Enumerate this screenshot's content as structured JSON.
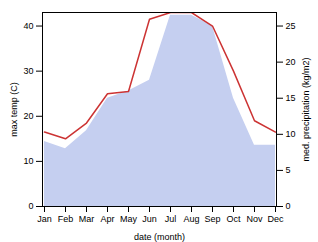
{
  "chart_data": {
    "type": "line",
    "xlabel": "date (month)",
    "ylabel": "max temp (C)",
    "y2label": "med. precipitation (kg/m2)",
    "categories": [
      "Jan",
      "Feb",
      "Mar",
      "Apr",
      "May",
      "Jun",
      "Jul",
      "Aug",
      "Sep",
      "Oct",
      "Nov",
      "Dec"
    ],
    "series": [
      {
        "type": "area",
        "axis": "y2",
        "color": "#c5cff0",
        "values": [
          9.0,
          8.0,
          10.5,
          15.0,
          16.0,
          17.5,
          26.5,
          26.5,
          25.0,
          15.0,
          8.5,
          8.5
        ]
      },
      {
        "type": "line",
        "color": "#cc3333",
        "values": [
          16.5,
          15.0,
          18.5,
          25.0,
          25.5,
          41.5,
          43.0,
          43.0,
          40.0,
          30.0,
          19.0,
          16.5
        ]
      }
    ],
    "ylim": [
      0,
      43
    ],
    "yticks": [
      0,
      10,
      20,
      30,
      40
    ],
    "y2lim": [
      0,
      26.875
    ],
    "y2ticks": [
      0,
      5,
      10,
      15,
      20,
      25
    ],
    "grid": false
  }
}
